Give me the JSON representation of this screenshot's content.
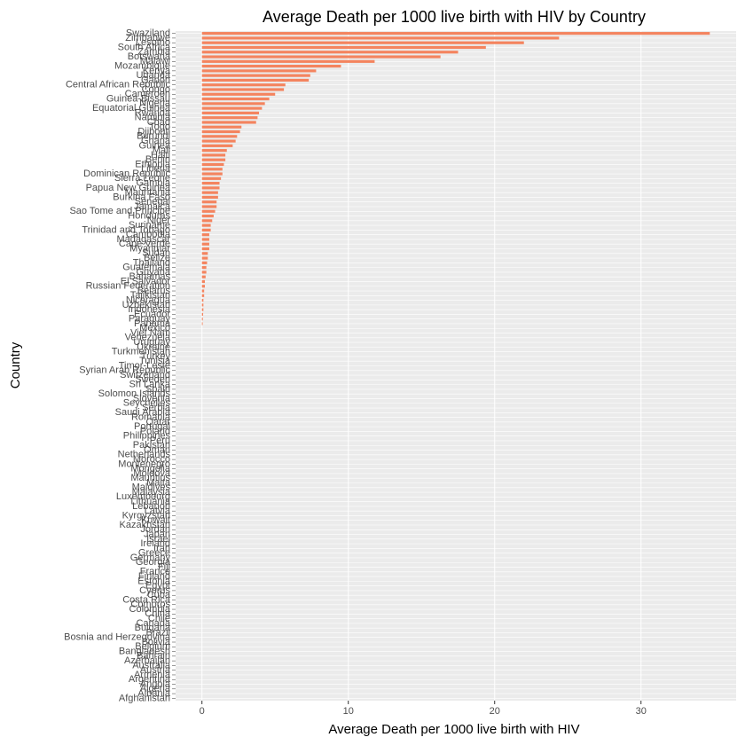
{
  "chart_data": {
    "type": "bar",
    "orientation": "horizontal",
    "title": "Average Death per 1000 live birth with HIV by Country",
    "x_label": "Average Death per 1000 live birth with HIV",
    "y_label": "Country",
    "color": "#f4845f",
    "grid": true,
    "xlim": [
      -1.8,
      36.5
    ],
    "xticks": [
      0,
      10,
      20,
      30
    ],
    "categories": [
      "Swaziland",
      "Zimbabwe",
      "Lesotho",
      "South Africa",
      "Zambia",
      "Botswana",
      "Malawi",
      "Mozambique",
      "Kenya",
      "Uganda",
      "Gabon",
      "Central African Republic",
      "Congo",
      "Cameroon",
      "Guinea-Bissau",
      "Nigeria",
      "Equatorial Guinea",
      "Rwanda",
      "Namibia",
      "Chad",
      "Togo",
      "Djibouti",
      "Burundi",
      "Ghana",
      "Guinea",
      "Mali",
      "Haiti",
      "Benin",
      "Ethiopia",
      "Liberia",
      "Dominican Republic",
      "Sierra Leone",
      "Gambia",
      "Papua New Guinea",
      "Mauritania",
      "Burkina Faso",
      "Senegal",
      "Jamaica",
      "Sao Tome and Principe",
      "Honduras",
      "Niger",
      "Suriname",
      "Trinidad and Tobago",
      "Cambodia",
      "Madagascar",
      "Cape Verde",
      "Myanmar",
      "Sudan",
      "Belize",
      "Thailand",
      "Guatemala",
      "Guyana",
      "Bahamas",
      "El Salvador",
      "Russian Federation",
      "Belarus",
      "Tajikistan",
      "Nicaragua",
      "Uzbekistan",
      "Indonesia",
      "Ecuador",
      "Paraguay",
      "Panama",
      "Mexico",
      "Viet Nam",
      "Venezuela",
      "Uruguay",
      "Ukraine",
      "Turkmenistan",
      "Turkey",
      "Tunisia",
      "Timor-Leste",
      "Syrian Arab Republic",
      "Switzerland",
      "Sweden",
      "Sri Lanka",
      "Spain",
      "Solomon Islands",
      "Slovenia",
      "Seychelles",
      "Serbia",
      "Saudi Arabia",
      "Romania",
      "Qatar",
      "Portugal",
      "Poland",
      "Philippines",
      "Peru",
      "Pakistan",
      "Oman",
      "Netherlands",
      "Morocco",
      "Montenegro",
      "Mongolia",
      "Moldova",
      "Mauritius",
      "Malta",
      "Maldives",
      "Malaysia",
      "Luxembourg",
      "Lithuania",
      "Lebanon",
      "Latvia",
      "Kyrgyzstan",
      "Kuwait",
      "Kazakhstan",
      "Jordan",
      "Japan",
      "Israel",
      "Ireland",
      "Iran",
      "Greece",
      "Germany",
      "Georgia",
      "Fiji",
      "France",
      "Finland",
      "Estonia",
      "Egypt",
      "Cyprus",
      "Cuba",
      "Costa Rica",
      "Comoros",
      "Colombia",
      "China",
      "Chile",
      "Canada",
      "Bulgaria",
      "Brazil",
      "Bosnia and Herzegovina",
      "Bolivia",
      "Belgium",
      "Bangladesh",
      "Bahrain",
      "Azerbaijan",
      "Australia",
      "Austria",
      "Armenia",
      "Argentina",
      "Angola",
      "Algeria",
      "Albania",
      "Afghanistan"
    ],
    "values": [
      34.7,
      24.4,
      22.0,
      19.4,
      17.5,
      16.3,
      11.8,
      9.5,
      7.8,
      7.4,
      7.3,
      5.7,
      5.6,
      5.0,
      4.6,
      4.3,
      4.1,
      3.9,
      3.8,
      3.7,
      2.7,
      2.6,
      2.4,
      2.3,
      2.1,
      1.7,
      1.6,
      1.6,
      1.5,
      1.4,
      1.4,
      1.3,
      1.2,
      1.2,
      1.1,
      1.1,
      1.0,
      1.0,
      0.9,
      0.8,
      0.7,
      0.6,
      0.6,
      0.5,
      0.5,
      0.5,
      0.5,
      0.4,
      0.4,
      0.35,
      0.3,
      0.3,
      0.25,
      0.2,
      0.2,
      0.15,
      0.15,
      0.1,
      0.1,
      0.1,
      0.08,
      0.06,
      0.05,
      0,
      0,
      0,
      0,
      0,
      0,
      0,
      0,
      0,
      0,
      0,
      0,
      0,
      0,
      0,
      0,
      0,
      0,
      0,
      0,
      0,
      0,
      0,
      0,
      0,
      0,
      0,
      0,
      0,
      0,
      0,
      0,
      0,
      0,
      0,
      0,
      0,
      0,
      0,
      0,
      0,
      0,
      0,
      0,
      0,
      0,
      0,
      0,
      0,
      0,
      0,
      0,
      0,
      0,
      0,
      0,
      0,
      0,
      0,
      0,
      0,
      0,
      0,
      0,
      0,
      0,
      0,
      0,
      0,
      0,
      0,
      0,
      0,
      0,
      0,
      0,
      0,
      0,
      0,
      0
    ]
  }
}
